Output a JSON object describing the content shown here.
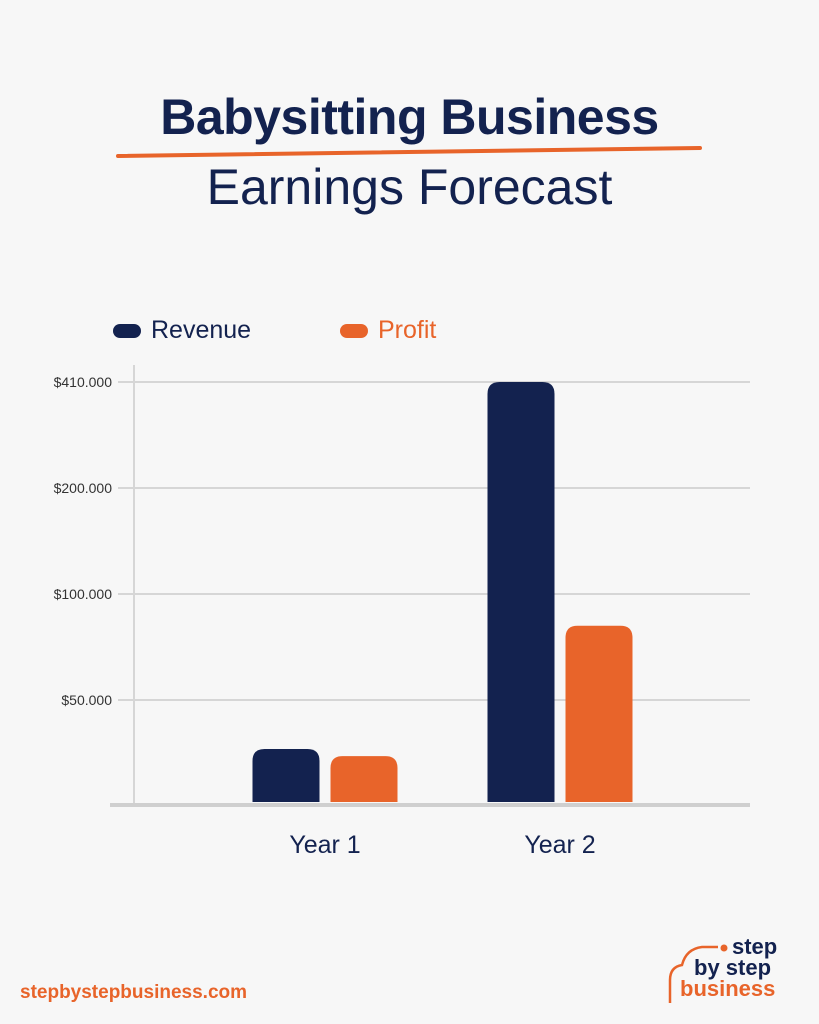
{
  "title_line1": "Babysitting Business",
  "title_line2": "Earnings Forecast",
  "colors": {
    "revenue": "#13224f",
    "profit": "#e8642a",
    "grid": "#d6d6d6",
    "background": "#f7f7f7"
  },
  "chart_data": {
    "type": "bar",
    "categories": [
      "Year 1",
      "Year 2"
    ],
    "series": [
      {
        "name": "Revenue",
        "values": [
          26000,
          410000
        ]
      },
      {
        "name": "Profit",
        "values": [
          22500,
          85000
        ]
      }
    ],
    "y_ticks": [
      50000,
      100000,
      200000,
      410000
    ],
    "y_tick_labels": [
      "$50.000",
      "$100.000",
      "$200.000",
      "$410.000"
    ],
    "y_scale": "non-linear (evenly spaced ticks)",
    "ylim": [
      0,
      410000
    ],
    "grid": true,
    "legend_position": "top-left"
  },
  "footer": {
    "url": "stepbystepbusiness.com"
  },
  "logo": {
    "line1": "step",
    "line2": "by step",
    "line3": "business"
  }
}
